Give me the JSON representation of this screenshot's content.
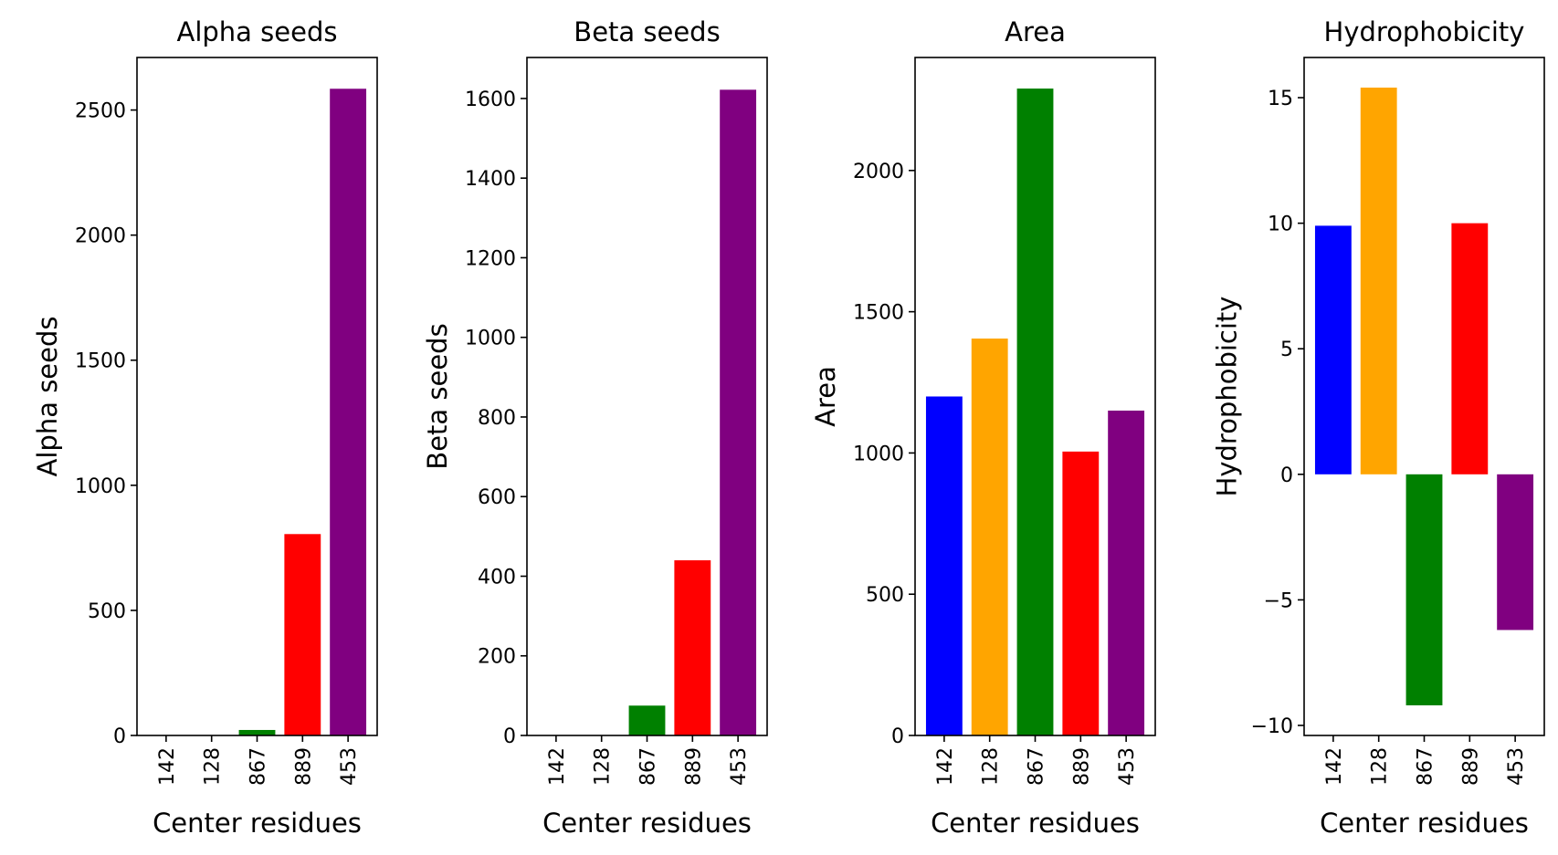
{
  "chart_data": [
    {
      "type": "bar",
      "title": "Alpha seeds",
      "xlabel": "Center residues",
      "ylabel": "Alpha seeds",
      "categories": [
        "142",
        "128",
        "867",
        "889",
        "453"
      ],
      "values": [
        0,
        0,
        22,
        805,
        2585
      ],
      "colors": [
        "#0000ff",
        "#ffa500",
        "#008000",
        "#ff0000",
        "#800080"
      ],
      "ylim": [
        0,
        2710
      ],
      "yticks": [
        0,
        500,
        1000,
        1500,
        2000,
        2500
      ],
      "ytick_labels": [
        "0",
        "500",
        "1000",
        "1500",
        "2000",
        "2500"
      ],
      "grid": false
    },
    {
      "type": "bar",
      "title": "Beta seeds",
      "xlabel": "Center residues",
      "ylabel": "Beta seeds",
      "categories": [
        "142",
        "128",
        "867",
        "889",
        "453"
      ],
      "values": [
        0,
        0,
        75,
        440,
        1622
      ],
      "colors": [
        "#0000ff",
        "#ffa500",
        "#008000",
        "#ff0000",
        "#800080"
      ],
      "ylim": [
        0,
        1703
      ],
      "yticks": [
        0,
        200,
        400,
        600,
        800,
        1000,
        1200,
        1400,
        1600
      ],
      "ytick_labels": [
        "0",
        "200",
        "400",
        "600",
        "800",
        "1000",
        "1200",
        "1400",
        "1600"
      ],
      "grid": false
    },
    {
      "type": "bar",
      "title": "Area",
      "xlabel": "Center residues",
      "ylabel": "Area",
      "categories": [
        "142",
        "128",
        "867",
        "889",
        "453"
      ],
      "values": [
        1200,
        1405,
        2290,
        1005,
        1150
      ],
      "colors": [
        "#0000ff",
        "#ffa500",
        "#008000",
        "#ff0000",
        "#800080"
      ],
      "ylim": [
        0,
        2400
      ],
      "yticks": [
        0,
        500,
        1000,
        1500,
        2000
      ],
      "ytick_labels": [
        "0",
        "500",
        "1000",
        "1500",
        "2000"
      ],
      "grid": false
    },
    {
      "type": "bar",
      "title": "Hydrophobicity",
      "xlabel": "Center residues",
      "ylabel": "Hydrophobicity",
      "categories": [
        "142",
        "128",
        "867",
        "889",
        "453"
      ],
      "values": [
        9.9,
        15.4,
        -9.2,
        10.0,
        -6.2
      ],
      "colors": [
        "#0000ff",
        "#ffa500",
        "#008000",
        "#ff0000",
        "#800080"
      ],
      "ylim": [
        -10.4,
        16.6
      ],
      "yticks": [
        -10,
        -5,
        0,
        5,
        10,
        15
      ],
      "ytick_labels": [
        "−10",
        "−5",
        "0",
        "5",
        "10",
        "15"
      ],
      "grid": false
    }
  ]
}
